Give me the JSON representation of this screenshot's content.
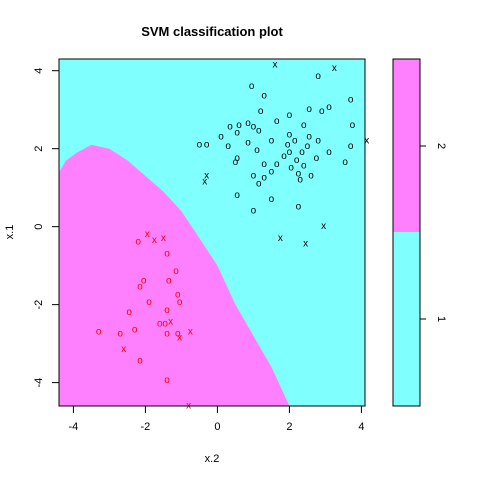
{
  "chart_data": {
    "type": "scatter",
    "title": "SVM classification plot",
    "xlabel": "x.2",
    "ylabel": "x.1",
    "xlim": [
      -4.4,
      4.1
    ],
    "ylim": [
      -4.6,
      4.3
    ],
    "x_ticks": [
      "-4",
      "-2",
      "0",
      "2",
      "4"
    ],
    "y_ticks": [
      "-4",
      "-2",
      "0",
      "2",
      "4"
    ],
    "class_colors": {
      "1": "#80FFFF",
      "2": "#FF80FF"
    },
    "legend": {
      "placement": "right",
      "levels": [
        "1",
        "2"
      ],
      "ticks": [
        "1",
        "2"
      ]
    },
    "symbols": {
      "data_point": "o",
      "support_vector": "x"
    },
    "decision_boundary": [
      [
        -4.4,
        1.4
      ],
      [
        -4.2,
        1.7
      ],
      [
        -3.9,
        1.9
      ],
      [
        -3.5,
        2.1
      ],
      [
        -3.0,
        2.0
      ],
      [
        -2.5,
        1.7
      ],
      [
        -2.0,
        1.3
      ],
      [
        -1.5,
        0.9
      ],
      [
        -1.0,
        0.4
      ],
      [
        -0.5,
        -0.3
      ],
      [
        0.0,
        -1.0
      ],
      [
        0.5,
        -2.0
      ],
      [
        1.0,
        -2.8
      ],
      [
        1.5,
        -3.6
      ],
      [
        2.0,
        -4.6
      ]
    ],
    "series": [
      {
        "name": "1",
        "color": "#000000",
        "points": [
          {
            "x": 1.6,
            "y": 4.15,
            "sv": true
          },
          {
            "x": 3.25,
            "y": 4.05,
            "sv": true
          },
          {
            "x": 2.8,
            "y": 3.85,
            "sv": false
          },
          {
            "x": 0.95,
            "y": 3.6,
            "sv": false
          },
          {
            "x": 1.3,
            "y": 3.35,
            "sv": false
          },
          {
            "x": 3.7,
            "y": 3.25,
            "sv": false
          },
          {
            "x": 2.55,
            "y": 3.0,
            "sv": false
          },
          {
            "x": 3.1,
            "y": 3.05,
            "sv": false
          },
          {
            "x": 1.2,
            "y": 2.95,
            "sv": false
          },
          {
            "x": 2.0,
            "y": 2.85,
            "sv": false
          },
          {
            "x": 2.9,
            "y": 2.95,
            "sv": false
          },
          {
            "x": 0.85,
            "y": 2.65,
            "sv": false
          },
          {
            "x": 1.65,
            "y": 2.7,
            "sv": false
          },
          {
            "x": 0.35,
            "y": 2.55,
            "sv": false
          },
          {
            "x": 0.6,
            "y": 2.6,
            "sv": false
          },
          {
            "x": 1.0,
            "y": 2.55,
            "sv": false
          },
          {
            "x": 2.4,
            "y": 2.6,
            "sv": false
          },
          {
            "x": 3.75,
            "y": 2.6,
            "sv": false
          },
          {
            "x": 0.55,
            "y": 2.4,
            "sv": false
          },
          {
            "x": 1.15,
            "y": 2.45,
            "sv": false
          },
          {
            "x": 2.0,
            "y": 2.35,
            "sv": false
          },
          {
            "x": 2.55,
            "y": 2.3,
            "sv": false
          },
          {
            "x": 0.1,
            "y": 2.3,
            "sv": false
          },
          {
            "x": 0.85,
            "y": 2.15,
            "sv": false
          },
          {
            "x": 1.5,
            "y": 2.2,
            "sv": false
          },
          {
            "x": 1.95,
            "y": 2.1,
            "sv": false
          },
          {
            "x": 2.15,
            "y": 2.2,
            "sv": false
          },
          {
            "x": 2.5,
            "y": 2.05,
            "sv": false
          },
          {
            "x": 2.8,
            "y": 2.2,
            "sv": false
          },
          {
            "x": 3.7,
            "y": 2.05,
            "sv": false
          },
          {
            "x": 4.15,
            "y": 2.2,
            "sv": true
          },
          {
            "x": -0.5,
            "y": 2.1,
            "sv": false
          },
          {
            "x": -0.3,
            "y": 2.1,
            "sv": false
          },
          {
            "x": 0.3,
            "y": 2.05,
            "sv": false
          },
          {
            "x": 1.1,
            "y": 1.95,
            "sv": false
          },
          {
            "x": 2.0,
            "y": 1.9,
            "sv": false
          },
          {
            "x": 2.35,
            "y": 1.9,
            "sv": false
          },
          {
            "x": 3.1,
            "y": 1.9,
            "sv": false
          },
          {
            "x": 0.55,
            "y": 1.75,
            "sv": false
          },
          {
            "x": 1.85,
            "y": 1.8,
            "sv": false
          },
          {
            "x": 2.2,
            "y": 1.7,
            "sv": false
          },
          {
            "x": 2.75,
            "y": 1.75,
            "sv": false
          },
          {
            "x": 0.5,
            "y": 1.65,
            "sv": false
          },
          {
            "x": 1.3,
            "y": 1.6,
            "sv": false
          },
          {
            "x": 1.65,
            "y": 1.6,
            "sv": false
          },
          {
            "x": 3.55,
            "y": 1.65,
            "sv": false
          },
          {
            "x": 2.05,
            "y": 1.5,
            "sv": false
          },
          {
            "x": 2.4,
            "y": 1.55,
            "sv": false
          },
          {
            "x": 1.5,
            "y": 1.4,
            "sv": false
          },
          {
            "x": 2.25,
            "y": 1.35,
            "sv": false
          },
          {
            "x": 2.6,
            "y": 1.3,
            "sv": false
          },
          {
            "x": -0.3,
            "y": 1.3,
            "sv": true
          },
          {
            "x": 1.0,
            "y": 1.3,
            "sv": false
          },
          {
            "x": 1.3,
            "y": 1.25,
            "sv": false
          },
          {
            "x": 2.3,
            "y": 1.2,
            "sv": false
          },
          {
            "x": -0.35,
            "y": 1.15,
            "sv": true
          },
          {
            "x": 1.15,
            "y": 1.1,
            "sv": false
          },
          {
            "x": 0.55,
            "y": 0.8,
            "sv": false
          },
          {
            "x": 1.5,
            "y": 0.7,
            "sv": false
          },
          {
            "x": 2.25,
            "y": 0.5,
            "sv": false
          },
          {
            "x": 1.0,
            "y": 0.4,
            "sv": false
          },
          {
            "x": 2.95,
            "y": 0.0,
            "sv": true
          },
          {
            "x": 1.75,
            "y": -0.3,
            "sv": true
          },
          {
            "x": 2.45,
            "y": -0.45,
            "sv": true
          }
        ]
      },
      {
        "name": "2",
        "color": "#FF0000",
        "points": [
          {
            "x": -1.95,
            "y": -0.2,
            "sv": true
          },
          {
            "x": -1.5,
            "y": -0.3,
            "sv": true
          },
          {
            "x": -1.75,
            "y": -0.35,
            "sv": true
          },
          {
            "x": -2.2,
            "y": -0.4,
            "sv": false
          },
          {
            "x": -1.4,
            "y": -0.7,
            "sv": false
          },
          {
            "x": -1.15,
            "y": -1.15,
            "sv": false
          },
          {
            "x": -2.05,
            "y": -1.4,
            "sv": false
          },
          {
            "x": -1.35,
            "y": -1.4,
            "sv": false
          },
          {
            "x": -2.15,
            "y": -1.55,
            "sv": false
          },
          {
            "x": -1.1,
            "y": -1.75,
            "sv": false
          },
          {
            "x": -1.9,
            "y": -1.95,
            "sv": false
          },
          {
            "x": -1.05,
            "y": -1.95,
            "sv": false
          },
          {
            "x": -2.45,
            "y": -2.2,
            "sv": false
          },
          {
            "x": -1.4,
            "y": -2.15,
            "sv": false
          },
          {
            "x": -1.3,
            "y": -2.45,
            "sv": true
          },
          {
            "x": -1.45,
            "y": -2.5,
            "sv": false
          },
          {
            "x": -1.6,
            "y": -2.5,
            "sv": false
          },
          {
            "x": -2.3,
            "y": -2.65,
            "sv": false
          },
          {
            "x": -3.3,
            "y": -2.7,
            "sv": false
          },
          {
            "x": -2.7,
            "y": -2.75,
            "sv": false
          },
          {
            "x": -1.4,
            "y": -2.75,
            "sv": false
          },
          {
            "x": -1.1,
            "y": -2.75,
            "sv": false
          },
          {
            "x": -0.75,
            "y": -2.7,
            "sv": true
          },
          {
            "x": -1.05,
            "y": -2.85,
            "sv": true
          },
          {
            "x": -2.6,
            "y": -3.15,
            "sv": true
          },
          {
            "x": -2.15,
            "y": -3.45,
            "sv": false
          },
          {
            "x": -1.4,
            "y": -3.95,
            "sv": false
          },
          {
            "x": -0.8,
            "y": -4.6,
            "sv": true
          }
        ]
      }
    ]
  }
}
